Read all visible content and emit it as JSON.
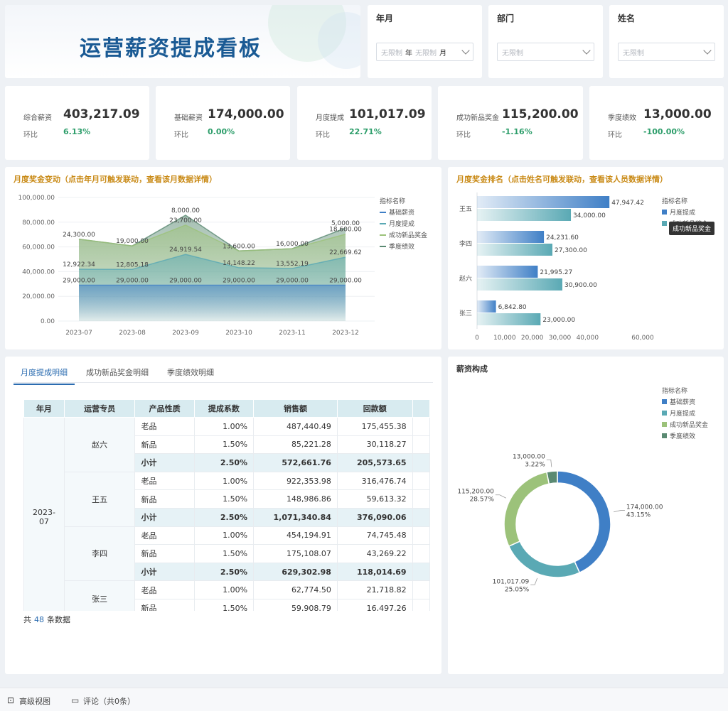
{
  "title": "运营薪资提成看板",
  "filters": {
    "yearmonth": {
      "label": "年月",
      "from_placeholder": "无限制",
      "year_unit": "年",
      "to_placeholder": "无限制",
      "month_unit": "月"
    },
    "department": {
      "label": "部门",
      "placeholder": "无限制"
    },
    "name": {
      "label": "姓名",
      "placeholder": "无限制"
    }
  },
  "kpis": [
    {
      "label": "综合薪资",
      "value": "403,217.09",
      "ring_label": "环比",
      "ring": "6.13%"
    },
    {
      "label": "基础薪资",
      "value": "174,000.00",
      "ring_label": "环比",
      "ring": "0.00%"
    },
    {
      "label": "月度提成",
      "value": "101,017.09",
      "ring_label": "环比",
      "ring": "22.71%"
    },
    {
      "label": "成功新品奖金",
      "value": "115,200.00",
      "ring_label": "环比",
      "ring": "-1.16%"
    },
    {
      "label": "季度绩效",
      "value": "13,000.00",
      "ring_label": "环比",
      "ring": "-100.00%"
    }
  ],
  "line_section": {
    "title": "月度奖金变动（点击年月可触发联动，查看该月数据详情）"
  },
  "rank_section": {
    "title": "月度奖金排名（点击姓名可触发联动，查看该人员数据详情）",
    "tooltip": "成功新品奖金"
  },
  "pie_section": {
    "title": "薪资构成"
  },
  "colors": {
    "base": "#3f7fc6",
    "commission": "#5aa9b4",
    "newproduct": "#9cc27a",
    "quarterly": "#5a8a72"
  },
  "chart_data": [
    {
      "type": "area",
      "x": [
        "2023-07",
        "2023-08",
        "2023-09",
        "2023-10",
        "2023-11",
        "2023-12"
      ],
      "ylim": [
        0,
        100000
      ],
      "yticks": [
        "100,000.00",
        "80,000.00",
        "60,000.00",
        "40,000.00",
        "20,000.00",
        "0.00"
      ],
      "legend_title": "指标名称",
      "legend_position": "right",
      "series": [
        {
          "name": "基础薪资",
          "values": [
            29000,
            29000,
            29000,
            29000,
            29000,
            29000
          ],
          "labels": [
            "29,000.00",
            "29,000.00",
            "29,000.00",
            "29,000.00",
            "29,000.00",
            "29,000.00"
          ]
        },
        {
          "name": "月度提成",
          "values": [
            12922.34,
            12805.18,
            24919.54,
            14148.22,
            13552.19,
            22669.62
          ],
          "labels": [
            "12,922.34",
            "12,805.18",
            "24,919.54",
            "14,148.22",
            "13,552.19",
            "22,669.62"
          ]
        },
        {
          "name": "成功新品奖金",
          "values": [
            24300,
            19000,
            23700,
            13600,
            16000,
            18600
          ],
          "labels": [
            "24,300.00",
            "19,000.00",
            "23,700.00",
            "13,600.00",
            "16,000.00",
            "18,600.00"
          ]
        },
        {
          "name": "季度绩效",
          "values": [
            0,
            0,
            8000,
            0,
            0,
            5000
          ],
          "labels": [
            "",
            "",
            "8,000.00",
            "",
            "",
            "5,000.00"
          ]
        }
      ]
    },
    {
      "type": "bar",
      "orientation": "horizontal",
      "categories": [
        "王五",
        "李四",
        "赵六",
        "张三"
      ],
      "xlim": [
        0,
        60000
      ],
      "xticks": [
        "0",
        "10,000",
        "20,000",
        "30,000",
        "40,000",
        "60,000"
      ],
      "legend_title": "指标名称",
      "series": [
        {
          "name": "月度提成",
          "values": [
            47947.42,
            24231.6,
            21995.27,
            6842.8
          ],
          "labels": [
            "47,947.42",
            "24,231.60",
            "21,995.27",
            "6,842.80"
          ]
        },
        {
          "name": "成功新品奖金",
          "values": [
            34000,
            27300,
            30900,
            23000
          ],
          "labels": [
            "34,000.00",
            "27,300.00",
            "30,900.00",
            "23,000.00"
          ]
        }
      ]
    },
    {
      "type": "pie",
      "legend_title": "指标名称",
      "slices": [
        {
          "name": "基础薪资",
          "value": 174000,
          "label": "174,000.00",
          "pct": "43.15%"
        },
        {
          "name": "月度提成",
          "value": 101017.09,
          "label": "101,017.09",
          "pct": "25.05%"
        },
        {
          "name": "成功新品奖金",
          "value": 115200,
          "label": "115,200.00",
          "pct": "28.57%"
        },
        {
          "name": "季度绩效",
          "value": 13000,
          "label": "13,000.00",
          "pct": "3.22%"
        }
      ]
    }
  ],
  "table": {
    "tabs": [
      "月度提成明细",
      "成功新品奖金明细",
      "季度绩效明细"
    ],
    "headers": [
      "年月",
      "运营专员",
      "产品性质",
      "提成系数",
      "销售额",
      "回款额"
    ],
    "month": "2023-07",
    "groups": [
      {
        "person": "赵六",
        "rows": [
          [
            "老品",
            "1.00%",
            "487,440.49",
            "175,455.38"
          ],
          [
            "新品",
            "1.50%",
            "85,221.28",
            "30,118.27"
          ]
        ],
        "subtotal": [
          "小计",
          "2.50%",
          "572,661.76",
          "205,573.65"
        ]
      },
      {
        "person": "王五",
        "rows": [
          [
            "老品",
            "1.00%",
            "922,353.98",
            "316,476.74"
          ],
          [
            "新品",
            "1.50%",
            "148,986.86",
            "59,613.32"
          ]
        ],
        "subtotal": [
          "小计",
          "2.50%",
          "1,071,340.84",
          "376,090.06"
        ]
      },
      {
        "person": "李四",
        "rows": [
          [
            "老品",
            "1.00%",
            "454,194.91",
            "74,745.48"
          ],
          [
            "新品",
            "1.50%",
            "175,108.07",
            "43,269.22"
          ]
        ],
        "subtotal": [
          "小计",
          "2.50%",
          "629,302.98",
          "118,014.69"
        ]
      },
      {
        "person": "张三",
        "rows": [
          [
            "老品",
            "1.00%",
            "62,774.50",
            "21,718.82"
          ],
          [
            "新品",
            "1.50%",
            "59,908.79",
            "16,497.26"
          ]
        ],
        "subtotal": null
      }
    ],
    "footer": {
      "prefix": "共",
      "count": "48",
      "suffix": "条数据"
    }
  },
  "bottom_bar": {
    "advanced": "高级视图",
    "comments": "评论（共0条）"
  }
}
